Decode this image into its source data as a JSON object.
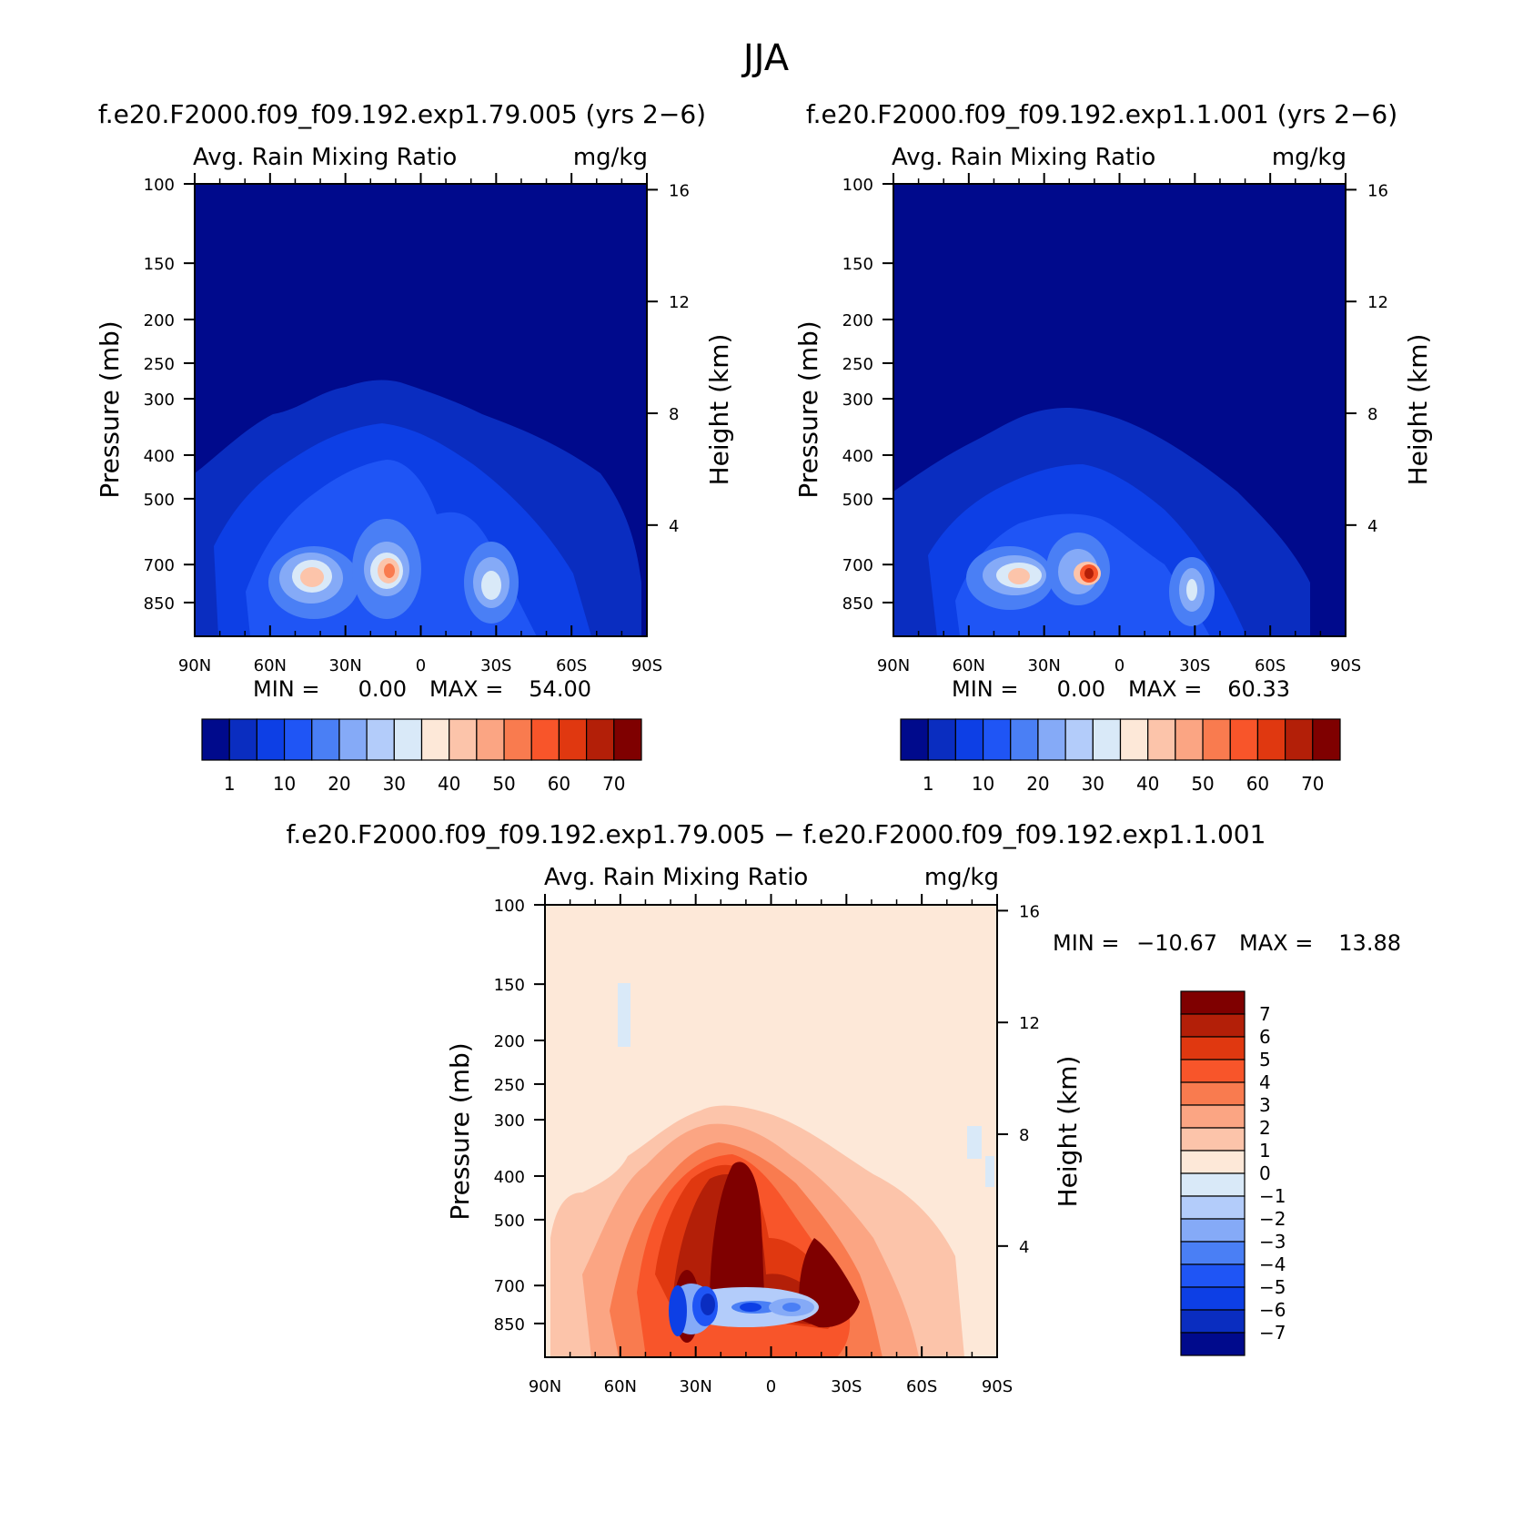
{
  "figure_title": "JJA",
  "chart_data": [
    {
      "type": "contour",
      "panel": "case",
      "case_label": "f.e20.F2000.f09_f09.192.exp1.79.005 (yrs 2−6)",
      "variable": "Avg. Rain Mixing Ratio",
      "units": "mg/kg",
      "ylabel": "Pressure (mb)",
      "y2label": "Height (km)",
      "x_ticks": [
        "90N",
        "60N",
        "30N",
        "0",
        "30S",
        "60S",
        "90S"
      ],
      "y_ticks": [
        "100",
        "150",
        "200",
        "250",
        "300",
        "400",
        "500",
        "700",
        "850"
      ],
      "y2_ticks": [
        "16",
        "12",
        "8",
        "4"
      ],
      "min_label": "MIN =",
      "min_value": "0.00",
      "max_label": "MAX =",
      "max_value": "54.00",
      "min": 0.0,
      "max": 54.0,
      "colorbar_labels": [
        "1",
        "10",
        "20",
        "30",
        "40",
        "50",
        "60",
        "70"
      ],
      "maxima": [
        {
          "lat": 42,
          "p": 700,
          "value": 45
        },
        {
          "lat": 13,
          "p": 690,
          "value": 54
        },
        {
          "lat": -24,
          "p": 710,
          "value": 35
        }
      ]
    },
    {
      "type": "contour",
      "panel": "control",
      "case_label": "f.e20.F2000.f09_f09.192.exp1.1.001 (yrs 2−6)",
      "variable": "Avg. Rain Mixing Ratio",
      "units": "mg/kg",
      "ylabel": "Pressure (mb)",
      "y2label": "Height (km)",
      "x_ticks": [
        "90N",
        "60N",
        "30N",
        "0",
        "30S",
        "60S",
        "90S"
      ],
      "y_ticks": [
        "100",
        "150",
        "200",
        "250",
        "300",
        "400",
        "500",
        "700",
        "850"
      ],
      "y2_ticks": [
        "16",
        "12",
        "8",
        "4"
      ],
      "min_label": "MIN =",
      "min_value": "0.00",
      "max_label": "MAX =",
      "max_value": "60.33",
      "min": 0.0,
      "max": 60.33,
      "colorbar_labels": [
        "1",
        "10",
        "20",
        "30",
        "40",
        "50",
        "60",
        "70"
      ],
      "maxima": [
        {
          "lat": 40,
          "p": 700,
          "value": 42
        },
        {
          "lat": 12,
          "p": 690,
          "value": 60
        },
        {
          "lat": -26,
          "p": 720,
          "value": 30
        }
      ]
    },
    {
      "type": "contour",
      "panel": "difference",
      "case_label": "f.e20.F2000.f09_f09.192.exp1.79.005 − f.e20.F2000.f09_f09.192.exp1.1.001",
      "variable": "Avg. Rain Mixing Ratio",
      "units": "mg/kg",
      "ylabel": "Pressure (mb)",
      "y2label": "Height (km)",
      "x_ticks": [
        "90N",
        "60N",
        "30N",
        "0",
        "30S",
        "60S",
        "90S"
      ],
      "y_ticks": [
        "100",
        "150",
        "200",
        "250",
        "300",
        "400",
        "500",
        "700",
        "850"
      ],
      "y2_ticks": [
        "16",
        "12",
        "8",
        "4"
      ],
      "min_label": "MIN =",
      "min_value": "−10.67",
      "max_label": "MAX =",
      "max_value": "13.88",
      "min": -10.67,
      "max": 13.88,
      "colorbar_labels": [
        "7",
        "6",
        "5",
        "4",
        "3",
        "2",
        "1",
        "0",
        "−1",
        "−2",
        "−3",
        "−4",
        "−5",
        "−6",
        "−7"
      ]
    }
  ],
  "colors": {
    "abs_scale": [
      "#000a8c",
      "#0a2dc0",
      "#0d3fe5",
      "#1f55f5",
      "#4a7ff5",
      "#85aaf7",
      "#b3ccfa",
      "#d9e9f8",
      "#fde8d8",
      "#fcc4aa",
      "#fba583",
      "#f97b4f",
      "#f8552a",
      "#e03810",
      "#b31f08",
      "#7f0000"
    ],
    "diff_scale": [
      "#000a8c",
      "#0a2dc0",
      "#0d3fe5",
      "#1f55f5",
      "#4a7ff5",
      "#85aaf7",
      "#b3ccfa",
      "#d9e9f8",
      "#fde8d8",
      "#fcc4aa",
      "#fba583",
      "#f97b4f",
      "#f8552a",
      "#e03810",
      "#b31f08",
      "#7f0000"
    ]
  }
}
